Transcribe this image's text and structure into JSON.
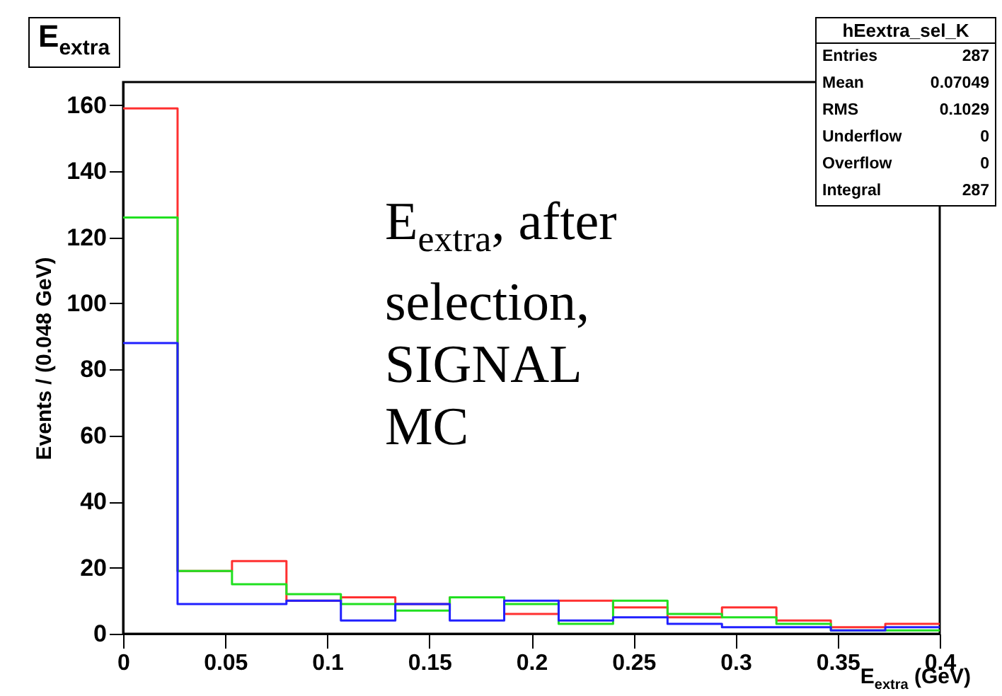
{
  "chart_data": {
    "type": "histogram",
    "title": "E$_{extra}$",
    "xlabel": "E$_{extra}$ (GeV)",
    "ylabel": "Events / (0.048 GeV)",
    "bins": [
      0,
      0.02667,
      0.05333,
      0.08,
      0.10667,
      0.13333,
      0.16,
      0.18667,
      0.21333,
      0.24,
      0.26667,
      0.29333,
      0.32,
      0.34667,
      0.37333,
      0.4
    ],
    "series": [
      {
        "color": "#ff3030",
        "values": [
          159,
          19,
          22,
          10,
          11,
          9,
          11,
          6,
          10,
          8,
          5,
          8,
          4,
          2,
          3
        ]
      },
      {
        "color": "#20e020",
        "values": [
          126,
          19,
          15,
          12,
          9,
          7,
          11,
          9,
          3,
          10,
          6,
          5,
          3,
          1,
          1
        ]
      },
      {
        "color": "#2020ff",
        "values": [
          88,
          9,
          9,
          10,
          4,
          9,
          4,
          10,
          4,
          5,
          3,
          2,
          2,
          1,
          2
        ]
      }
    ],
    "xlim": [
      0,
      0.4
    ],
    "ylim": [
      0,
      167
    ],
    "xticks": [
      0,
      0.05,
      0.1,
      0.15,
      0.2,
      0.25,
      0.3,
      0.35,
      0.4
    ],
    "yticks": [
      0,
      20,
      40,
      60,
      80,
      100,
      120,
      140,
      160
    ],
    "annotations": [
      "E$_{extra}$, after selection, SIGNAL MC",
      "hEextra_sel_K",
      "Entries 287",
      "Mean 0.07049",
      "RMS 0.1029",
      "Underflow 0",
      "Overflow 0",
      "Integral 287"
    ]
  }
}
